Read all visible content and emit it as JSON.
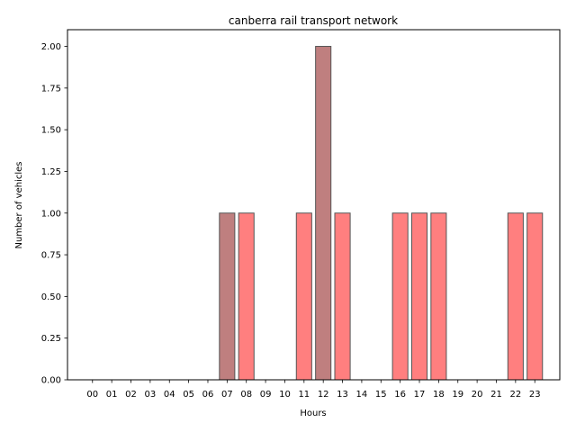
{
  "chart_data": {
    "type": "bar",
    "title": "canberra rail transport network",
    "xlabel": "Hours",
    "ylabel": "Number of vehicles",
    "categories": [
      "00",
      "01",
      "02",
      "03",
      "04",
      "05",
      "06",
      "07",
      "08",
      "09",
      "10",
      "11",
      "12",
      "13",
      "14",
      "15",
      "16",
      "17",
      "18",
      "19",
      "20",
      "21",
      "22",
      "23"
    ],
    "values": [
      0,
      0,
      0,
      0,
      0,
      0,
      0,
      1,
      1,
      0,
      0,
      1,
      2,
      1,
      0,
      0,
      1,
      1,
      1,
      0,
      0,
      0,
      1,
      1
    ],
    "bar_colors": [
      "#ff7f7f",
      "#ff7f7f",
      "#ff7f7f",
      "#ff7f7f",
      "#ff7f7f",
      "#ff7f7f",
      "#ff7f7f",
      "#bf7f7f",
      "#ff7f7f",
      "#ff7f7f",
      "#ff7f7f",
      "#ff7f7f",
      "#bf7f7f",
      "#ff7f7f",
      "#ff7f7f",
      "#ff7f7f",
      "#ff7f7f",
      "#ff7f7f",
      "#ff7f7f",
      "#ff7f7f",
      "#ff7f7f",
      "#ff7f7f",
      "#ff7f7f",
      "#ff7f7f"
    ],
    "bar_edge_color": "#555555",
    "ylim": [
      0,
      2.1
    ],
    "yticks": [
      "0.00",
      "0.25",
      "0.50",
      "0.75",
      "1.00",
      "1.25",
      "1.50",
      "1.75",
      "2.00"
    ],
    "grid": false,
    "legend": "none"
  }
}
